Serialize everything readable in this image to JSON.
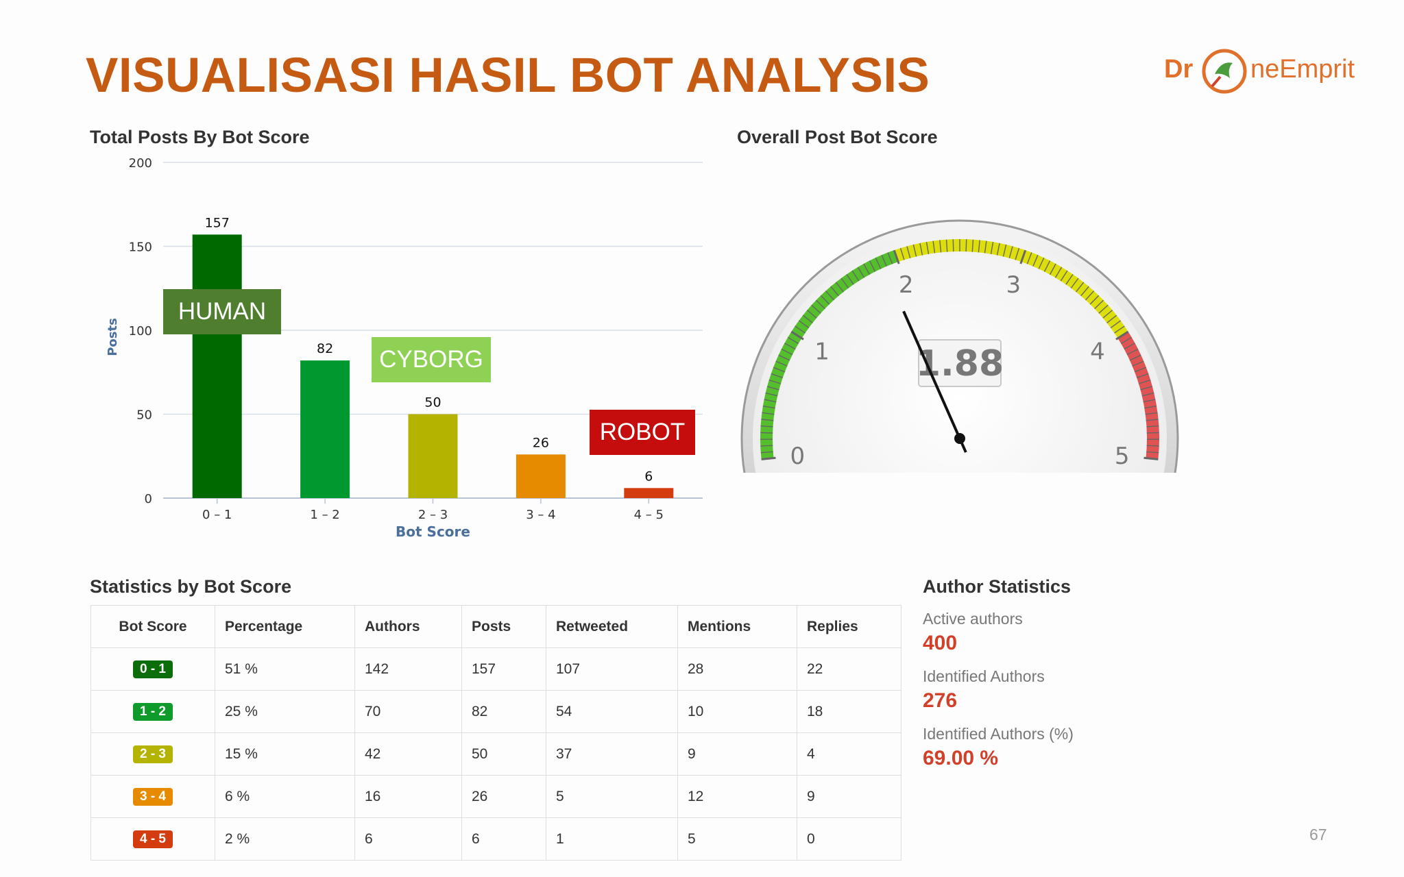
{
  "slide": {
    "title": "VISUALISASI HASIL BOT ANALYSIS",
    "logo_left": "Dr",
    "logo_right": "neEmprit",
    "page_number": "67"
  },
  "bar_section": {
    "heading": "Total Posts By Bot Score"
  },
  "gauge_section": {
    "heading": "Overall Post Bot Score"
  },
  "labels": {
    "human": "HUMAN",
    "cyborg": "CYBORG",
    "robot": "ROBOT"
  },
  "chart_data": [
    {
      "type": "bar",
      "title": "Total Posts By Bot Score",
      "xlabel": "Bot Score",
      "ylabel": "Posts",
      "categories": [
        "0 – 1",
        "1 – 2",
        "2 – 3",
        "3 – 4",
        "4 – 5"
      ],
      "values": [
        157,
        82,
        50,
        26,
        6
      ],
      "colors": [
        "#006a00",
        "#00992f",
        "#b3b300",
        "#e68a00",
        "#d23c0e"
      ],
      "ylim": [
        0,
        200
      ],
      "yticks": [
        0,
        50,
        100,
        150,
        200
      ],
      "grid": true
    },
    {
      "type": "gauge",
      "title": "Overall Post Bot Score",
      "value": 1.88,
      "value_label": "1.88",
      "range": [
        0,
        5
      ],
      "ticks": [
        "0",
        "1",
        "2",
        "3",
        "4",
        "5"
      ],
      "bands": [
        {
          "from": 0,
          "to": 2,
          "color": "#55be2c"
        },
        {
          "from": 2,
          "to": 4,
          "color": "#dddf0d"
        },
        {
          "from": 4,
          "to": 5,
          "color": "#df5353"
        }
      ]
    }
  ],
  "stats": {
    "heading": "Statistics by Bot Score",
    "columns": [
      "Bot Score",
      "Percentage",
      "Authors",
      "Posts",
      "Retweeted",
      "Mentions",
      "Replies"
    ],
    "rows": [
      {
        "score": "0 - 1",
        "color": "#0b6e0b",
        "pct": "51 %",
        "authors": "142",
        "posts": "157",
        "retweeted": "107",
        "mentions": "28",
        "replies": "22"
      },
      {
        "score": "1 - 2",
        "color": "#0f9a2c",
        "pct": "25 %",
        "authors": "70",
        "posts": "82",
        "retweeted": "54",
        "mentions": "10",
        "replies": "18"
      },
      {
        "score": "2 - 3",
        "color": "#b3b300",
        "pct": "15 %",
        "authors": "42",
        "posts": "50",
        "retweeted": "37",
        "mentions": "9",
        "replies": "4"
      },
      {
        "score": "3 - 4",
        "color": "#e68a00",
        "pct": "6 %",
        "authors": "16",
        "posts": "26",
        "retweeted": "5",
        "mentions": "12",
        "replies": "9"
      },
      {
        "score": "4 - 5",
        "color": "#d23c0e",
        "pct": "2 %",
        "authors": "6",
        "posts": "6",
        "retweeted": "1",
        "mentions": "5",
        "replies": "0"
      }
    ]
  },
  "author_stats": {
    "heading": "Author Statistics",
    "items": [
      {
        "label": "Active authors",
        "value": "400"
      },
      {
        "label": "Identified Authors",
        "value": "276"
      },
      {
        "label": "Identified Authors (%)",
        "value": "69.00 %"
      }
    ]
  }
}
